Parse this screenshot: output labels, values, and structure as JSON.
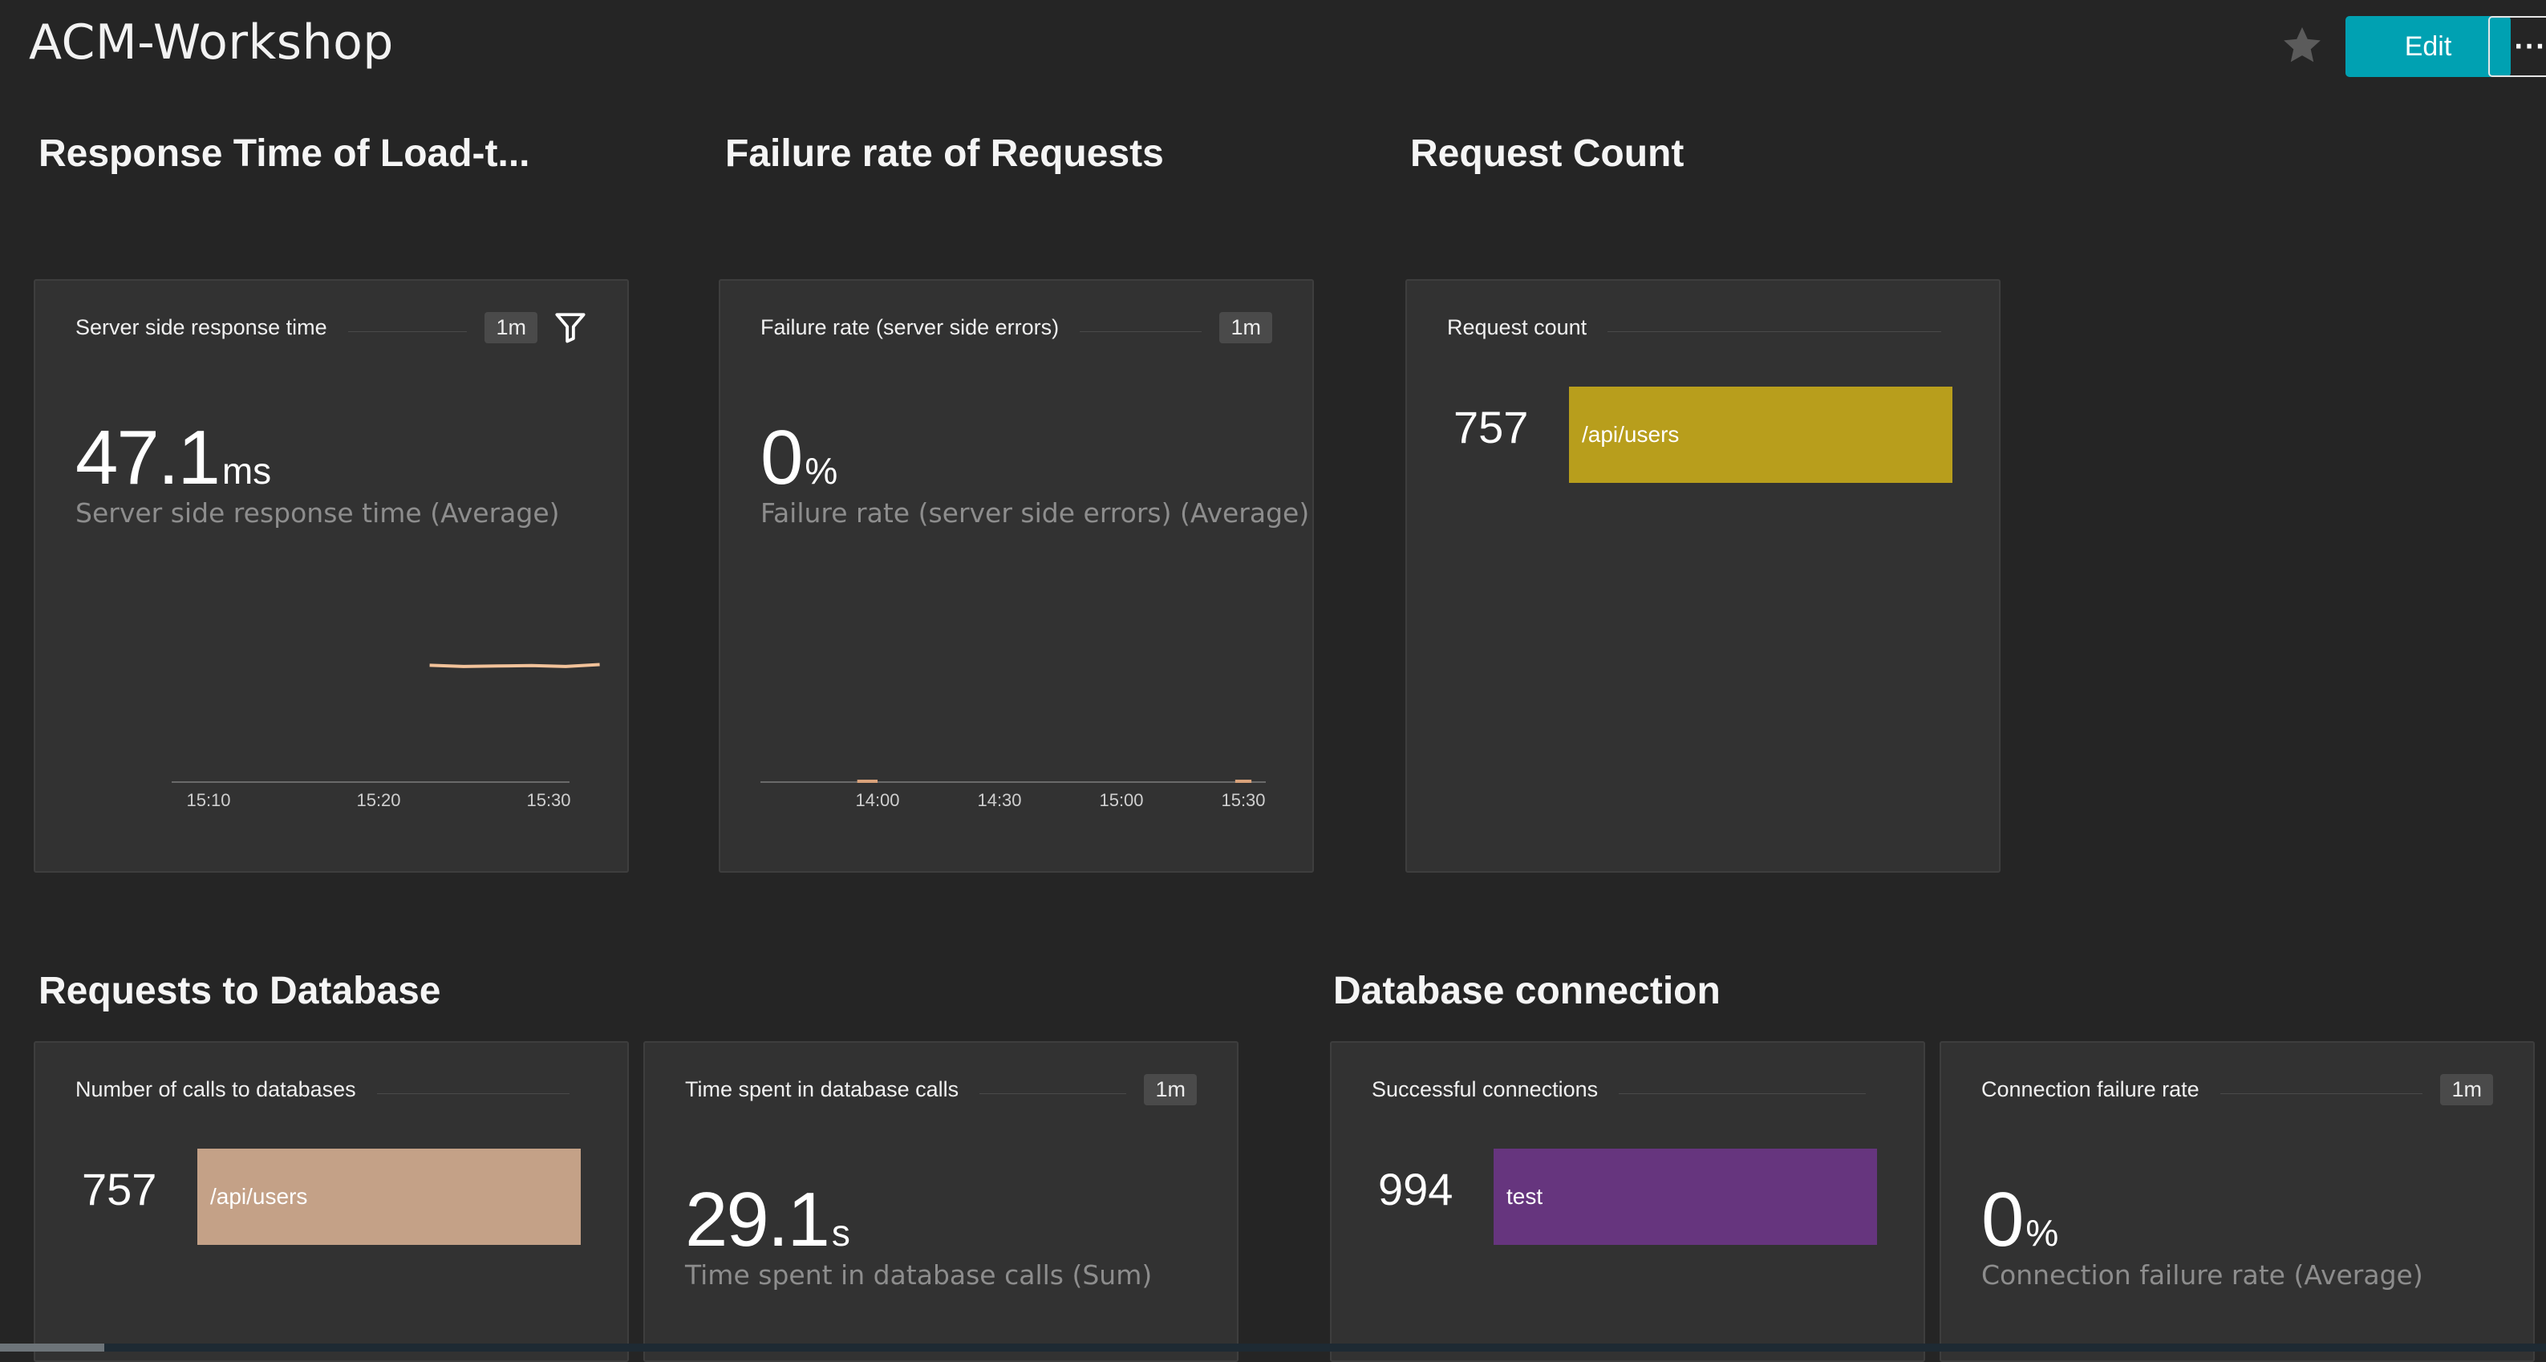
{
  "app": {
    "title": "ACM-Workshop"
  },
  "toolbar": {
    "edit_label": "Edit",
    "more_label": "···",
    "star_icon": "star-icon"
  },
  "colors": {
    "accent": "#00a1b2",
    "response_line": "#f2c29a",
    "failure_line": "#d9a27a",
    "request_bar": "#b89e1c",
    "db_calls_bar": "#c4a187",
    "connections_bar": "#66357e"
  },
  "sections": {
    "response_time": "Response Time of Load-t...",
    "failure_rate": "Failure rate of Requests",
    "request_count": "Request Count",
    "db_requests": "Requests to Database",
    "db_connection": "Database connection"
  },
  "tiles": {
    "response_time": {
      "title": "Server side response time",
      "interval": "1m",
      "value": "47.1",
      "unit": "ms",
      "caption": "Server side response time (Average)",
      "x_ticks": [
        "15:10",
        "15:20",
        "15:30"
      ]
    },
    "failure_rate": {
      "title": "Failure rate (server side errors)",
      "interval": "1m",
      "value": "0",
      "unit": "%",
      "caption": "Failure rate (server side errors) (Average)",
      "x_ticks": [
        "14:00",
        "14:30",
        "15:00",
        "15:30"
      ]
    },
    "request_count": {
      "title": "Request count",
      "count": "757",
      "bar_label": "/api/users"
    },
    "db_calls": {
      "title": "Number of calls to databases",
      "count": "757",
      "bar_label": "/api/users"
    },
    "db_time": {
      "title": "Time spent in database calls",
      "interval": "1m",
      "value": "29.1",
      "unit": "s",
      "caption": "Time spent in database calls (Sum)"
    },
    "db_success": {
      "title": "Successful connections",
      "count": "994",
      "bar_label": "test"
    },
    "db_failure": {
      "title": "Connection failure rate",
      "interval": "1m",
      "value": "0",
      "unit": "%",
      "caption": "Connection failure rate (Average)"
    }
  },
  "chart_data": [
    {
      "type": "line",
      "x": [
        "15:23",
        "15:25",
        "15:27",
        "15:29",
        "15:31",
        "15:33"
      ],
      "series": [
        {
          "values": [
            47.3,
            46.8,
            47.0,
            47.2,
            46.8,
            47.6
          ]
        }
      ],
      "x_ticks": [
        "15:10",
        "15:20",
        "15:30"
      ],
      "title": "",
      "xlabel": "",
      "ylabel": "",
      "grid": false
    },
    {
      "type": "line",
      "x": [
        "13:55",
        "14:00",
        "15:28",
        "15:32"
      ],
      "series": [
        {
          "values": [
            0,
            0,
            0,
            0
          ]
        }
      ],
      "x_ticks": [
        "14:00",
        "14:30",
        "15:00",
        "15:30"
      ],
      "title": "",
      "xlabel": "",
      "ylabel": "",
      "grid": false
    }
  ]
}
